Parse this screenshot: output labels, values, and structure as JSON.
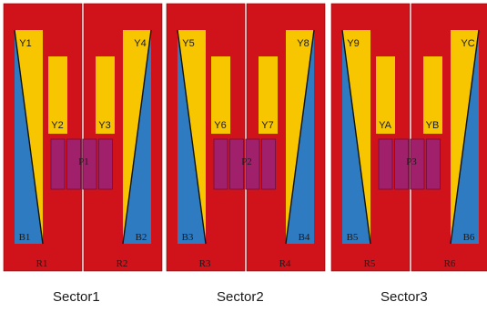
{
  "colors": {
    "red": "#D0121B",
    "yellow": "#F7C600",
    "blue": "#2E7BC1",
    "purple": "#A0206C",
    "outline": "#7a0b10"
  },
  "sectors": [
    {
      "caption": "Sector1",
      "pair": "P1",
      "panels": [
        {
          "r": "R1",
          "outer_y": "Y1",
          "inner_y": "Y2",
          "b": "B1"
        },
        {
          "r": "R2",
          "outer_y": "Y4",
          "inner_y": "Y3",
          "b": "B2"
        }
      ]
    },
    {
      "caption": "Sector2",
      "pair": "P2",
      "panels": [
        {
          "r": "R3",
          "outer_y": "Y5",
          "inner_y": "Y6",
          "b": "B3"
        },
        {
          "r": "R4",
          "outer_y": "Y8",
          "inner_y": "Y7",
          "b": "B4"
        }
      ]
    },
    {
      "caption": "Sector3",
      "pair": "P3",
      "panels": [
        {
          "r": "R5",
          "outer_y": "Y9",
          "inner_y": "YA",
          "b": "B5"
        },
        {
          "r": "R6",
          "outer_y": "YC",
          "inner_y": "YB",
          "b": "B6"
        }
      ]
    }
  ]
}
